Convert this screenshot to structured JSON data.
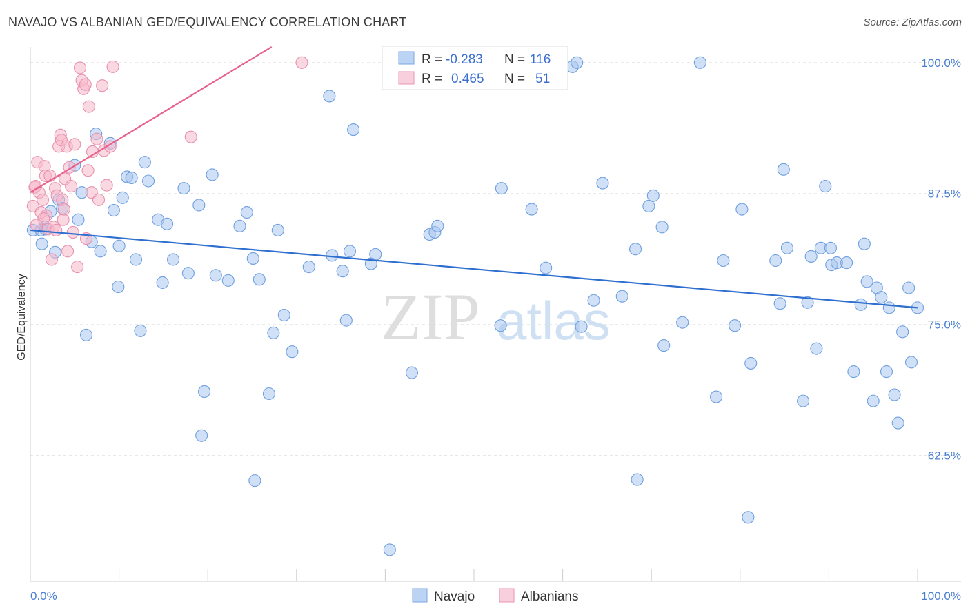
{
  "title": "NAVAJO VS ALBANIAN GED/EQUIVALENCY CORRELATION CHART",
  "source": "Source: ZipAtlas.com",
  "watermark": {
    "zip": "ZIP",
    "atlas": "atlas"
  },
  "legend": {
    "r_label": "R =",
    "n_label": "N =",
    "rows": [
      {
        "series": "Navajo",
        "r": "-0.283",
        "n": "116",
        "color": "#a9c6ef"
      },
      {
        "series": "Albanians",
        "r": "0.465",
        "n": "51",
        "color": "#f5b8cb"
      }
    ]
  },
  "chart_data": {
    "type": "scatter",
    "title": "NAVAJO VS ALBANIAN GED/EQUIVALENCY CORRELATION CHART",
    "xlabel": "",
    "ylabel": "GED/Equivalency",
    "xlim": [
      0,
      100
    ],
    "ylim": [
      50.5,
      101.5
    ],
    "x_tick_labels": [
      "0.0%",
      "100.0%"
    ],
    "y_tick_labels": [
      "100.0%",
      "87.5%",
      "75.0%",
      "62.5%"
    ],
    "y_tick_values": [
      100,
      87.5,
      75,
      62.5
    ],
    "grid": true,
    "legend_position": "top-center",
    "series": [
      {
        "name": "Navajo",
        "color": "#a9c6ef",
        "stroke": "#6f9fe0",
        "trend_color": "#2f6fd0",
        "trend": {
          "x": [
            0,
            100
          ],
          "y": [
            84.0,
            76.6
          ]
        },
        "points": [
          [
            0.3,
            84.0
          ],
          [
            1.3,
            82.7
          ],
          [
            1.6,
            84.3
          ],
          [
            2.3,
            85.8
          ],
          [
            2.8,
            81.9
          ],
          [
            3.2,
            86.9
          ],
          [
            3.6,
            86.1
          ],
          [
            5.0,
            90.2
          ],
          [
            5.4,
            85.0
          ],
          [
            5.8,
            87.6
          ],
          [
            6.3,
            74.0
          ],
          [
            6.9,
            82.9
          ],
          [
            7.4,
            93.2
          ],
          [
            7.9,
            82.0
          ],
          [
            9.0,
            92.3
          ],
          [
            9.4,
            85.9
          ],
          [
            9.9,
            78.6
          ],
          [
            10.4,
            87.1
          ],
          [
            10.9,
            89.1
          ],
          [
            11.4,
            89.0
          ],
          [
            11.9,
            81.2
          ],
          [
            12.4,
            74.4
          ],
          [
            12.9,
            90.5
          ],
          [
            13.3,
            88.7
          ],
          [
            14.4,
            85.0
          ],
          [
            14.9,
            79.0
          ],
          [
            15.4,
            84.6
          ],
          [
            16.1,
            81.2
          ],
          [
            17.3,
            88.0
          ],
          [
            17.8,
            79.9
          ],
          [
            19.0,
            86.4
          ],
          [
            19.3,
            64.4
          ],
          [
            19.6,
            68.6
          ],
          [
            20.5,
            89.3
          ],
          [
            20.9,
            79.7
          ],
          [
            22.3,
            79.2
          ],
          [
            23.6,
            84.4
          ],
          [
            24.4,
            85.7
          ],
          [
            25.1,
            81.3
          ],
          [
            25.3,
            60.1
          ],
          [
            25.8,
            79.3
          ],
          [
            26.9,
            68.4
          ],
          [
            27.4,
            74.2
          ],
          [
            27.9,
            84.0
          ],
          [
            28.6,
            75.9
          ],
          [
            29.5,
            72.4
          ],
          [
            31.4,
            80.5
          ],
          [
            33.7,
            96.8
          ],
          [
            34.0,
            81.6
          ],
          [
            35.2,
            80.1
          ],
          [
            35.6,
            75.4
          ],
          [
            36.0,
            82.0
          ],
          [
            36.4,
            93.6
          ],
          [
            38.4,
            80.8
          ],
          [
            38.9,
            81.7
          ],
          [
            40.5,
            53.5
          ],
          [
            43.0,
            70.4
          ],
          [
            45.0,
            83.6
          ],
          [
            45.6,
            83.8
          ],
          [
            45.9,
            84.4
          ],
          [
            53.0,
            74.9
          ],
          [
            53.1,
            88.0
          ],
          [
            56.5,
            86.0
          ],
          [
            58.1,
            80.4
          ],
          [
            61.1,
            99.6
          ],
          [
            61.6,
            100.0
          ],
          [
            62.1,
            74.8
          ],
          [
            63.5,
            77.3
          ],
          [
            64.5,
            88.5
          ],
          [
            66.7,
            77.7
          ],
          [
            68.2,
            82.2
          ],
          [
            68.4,
            60.2
          ],
          [
            69.7,
            86.3
          ],
          [
            70.2,
            87.3
          ],
          [
            71.2,
            84.3
          ],
          [
            71.4,
            73.0
          ],
          [
            73.5,
            75.2
          ],
          [
            75.5,
            100.0
          ],
          [
            77.3,
            68.1
          ],
          [
            78.1,
            81.1
          ],
          [
            79.4,
            74.9
          ],
          [
            80.2,
            86.0
          ],
          [
            80.9,
            56.6
          ],
          [
            81.2,
            71.3
          ],
          [
            84.0,
            81.1
          ],
          [
            84.5,
            77.0
          ],
          [
            84.9,
            89.8
          ],
          [
            85.3,
            82.3
          ],
          [
            87.1,
            67.7
          ],
          [
            87.6,
            77.1
          ],
          [
            88.0,
            81.5
          ],
          [
            88.6,
            72.7
          ],
          [
            89.1,
            82.3
          ],
          [
            89.6,
            88.2
          ],
          [
            90.2,
            82.3
          ],
          [
            90.3,
            80.7
          ],
          [
            90.9,
            80.9
          ],
          [
            92.0,
            80.9
          ],
          [
            92.8,
            70.5
          ],
          [
            93.6,
            76.9
          ],
          [
            94.0,
            82.7
          ],
          [
            94.3,
            79.1
          ],
          [
            95.0,
            67.7
          ],
          [
            95.4,
            78.5
          ],
          [
            95.9,
            77.6
          ],
          [
            96.5,
            70.5
          ],
          [
            96.8,
            76.6
          ],
          [
            97.4,
            68.3
          ],
          [
            97.8,
            65.6
          ],
          [
            98.3,
            74.3
          ],
          [
            99.0,
            78.5
          ],
          [
            99.3,
            71.4
          ],
          [
            100.0,
            76.6
          ],
          [
            1.2,
            84.0
          ],
          [
            10.0,
            82.5
          ],
          [
            1.7,
            84.1
          ]
        ]
      },
      {
        "name": "Albanians",
        "color": "#f5b8cb",
        "stroke": "#e890ad",
        "trend_color": "#e8608c",
        "trend": {
          "x": [
            0,
            27.2
          ],
          "y": [
            87.6,
            101.5
          ]
        },
        "points": [
          [
            0.3,
            86.3
          ],
          [
            0.5,
            88.1
          ],
          [
            0.6,
            88.2
          ],
          [
            0.8,
            90.5
          ],
          [
            1.0,
            87.6
          ],
          [
            1.2,
            85.7
          ],
          [
            1.4,
            86.9
          ],
          [
            1.6,
            90.1
          ],
          [
            1.7,
            89.2
          ],
          [
            1.8,
            85.4
          ],
          [
            2.0,
            84.1
          ],
          [
            2.2,
            89.2
          ],
          [
            2.4,
            81.2
          ],
          [
            2.6,
            84.3
          ],
          [
            2.8,
            88.0
          ],
          [
            3.0,
            87.3
          ],
          [
            3.2,
            92.0
          ],
          [
            3.4,
            93.1
          ],
          [
            3.5,
            92.6
          ],
          [
            3.6,
            86.9
          ],
          [
            3.7,
            85.0
          ],
          [
            3.8,
            86.0
          ],
          [
            3.9,
            88.9
          ],
          [
            4.1,
            92.0
          ],
          [
            4.2,
            82.0
          ],
          [
            4.4,
            90.0
          ],
          [
            4.6,
            88.2
          ],
          [
            4.8,
            83.8
          ],
          [
            5.0,
            92.2
          ],
          [
            5.3,
            80.5
          ],
          [
            5.6,
            99.5
          ],
          [
            5.8,
            98.3
          ],
          [
            6.0,
            97.5
          ],
          [
            6.2,
            97.9
          ],
          [
            6.3,
            83.2
          ],
          [
            6.5,
            89.7
          ],
          [
            6.6,
            95.8
          ],
          [
            6.9,
            87.6
          ],
          [
            7.0,
            91.5
          ],
          [
            7.5,
            92.7
          ],
          [
            7.7,
            86.9
          ],
          [
            8.1,
            97.8
          ],
          [
            8.3,
            91.6
          ],
          [
            8.6,
            88.3
          ],
          [
            9.0,
            92.0
          ],
          [
            9.3,
            99.6
          ],
          [
            18.1,
            92.9
          ],
          [
            30.6,
            100.0
          ],
          [
            2.9,
            84.0
          ],
          [
            1.5,
            85.1
          ],
          [
            0.7,
            84.5
          ]
        ]
      }
    ]
  }
}
